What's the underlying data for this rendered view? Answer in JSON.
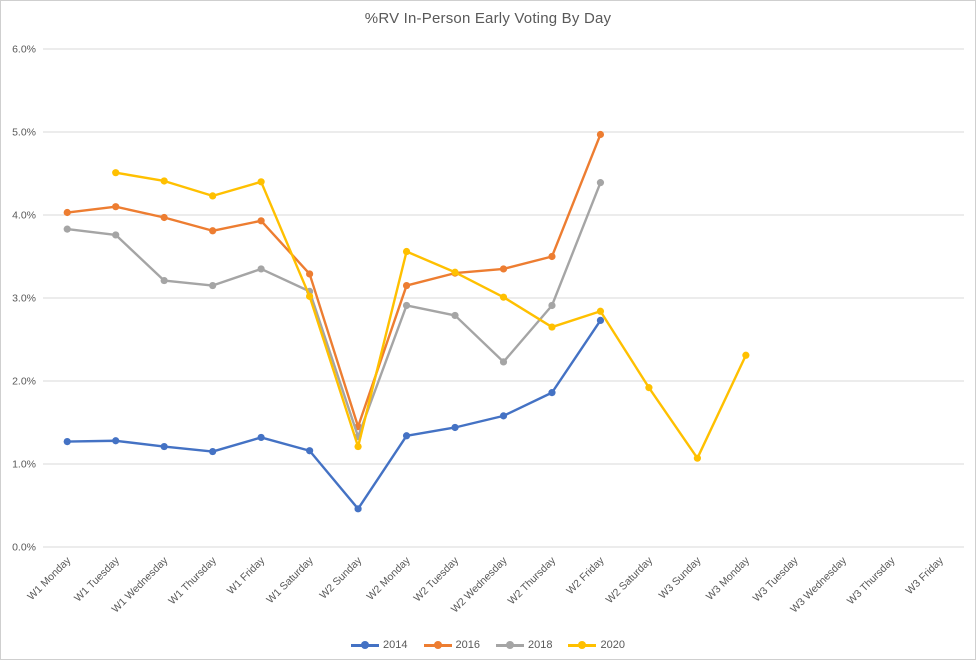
{
  "title": "%RV In-Person Early Voting By Day",
  "colors": {
    "series_2014": "#4472C4",
    "series_2016": "#ED7D31",
    "series_2018": "#A5A5A5",
    "series_2020": "#FFC000",
    "gridline": "#d9d9d9",
    "axis_text": "#595959"
  },
  "chart_data": {
    "type": "line",
    "title": "%RV In-Person Early Voting By Day",
    "xlabel": "",
    "ylabel": "",
    "ylim": [
      0,
      6
    ],
    "y_tick_step": 1,
    "y_tick_labels": [
      "0.0%",
      "1.0%",
      "2.0%",
      "3.0%",
      "4.0%",
      "5.0%",
      "6.0%"
    ],
    "grid": true,
    "legend_position": "bottom",
    "marker": "circle",
    "categories": [
      "W1 Monday",
      "W1 Tuesday",
      "W1 Wednesday",
      "W1 Thursday",
      "W1 Friday",
      "W1 Saturday",
      "W2 Sunday",
      "W2 Monday",
      "W2 Tuesday",
      "W2 Wednesday",
      "W2 Thursday",
      "W2 Friday",
      "W2 Saturday",
      "W3 Sunday",
      "W3 Monday",
      "W3 Tuesday",
      "W3 Wednesday",
      "W3 Thursday",
      "W3 Friday"
    ],
    "series": [
      {
        "name": "2014",
        "color": "#4472C4",
        "values": [
          1.27,
          1.28,
          1.21,
          1.15,
          1.32,
          1.16,
          0.46,
          1.34,
          1.44,
          1.58,
          1.86,
          2.73,
          null,
          null,
          null,
          null,
          null,
          null,
          null
        ]
      },
      {
        "name": "2016",
        "color": "#ED7D31",
        "values": [
          4.03,
          4.1,
          3.97,
          3.81,
          3.93,
          3.29,
          1.45,
          3.15,
          3.3,
          3.35,
          3.5,
          4.97,
          null,
          null,
          null,
          null,
          null,
          null,
          null
        ]
      },
      {
        "name": "2018",
        "color": "#A5A5A5",
        "values": [
          3.83,
          3.76,
          3.21,
          3.15,
          3.35,
          3.08,
          1.33,
          2.91,
          2.79,
          2.23,
          2.91,
          4.39,
          null,
          null,
          null,
          null,
          null,
          null,
          null
        ]
      },
      {
        "name": "2020",
        "color": "#FFC000",
        "values": [
          null,
          4.51,
          4.41,
          4.23,
          4.4,
          3.02,
          1.21,
          3.56,
          3.31,
          3.01,
          2.65,
          2.84,
          1.92,
          1.07,
          2.31,
          null,
          null,
          null,
          null
        ]
      }
    ]
  }
}
